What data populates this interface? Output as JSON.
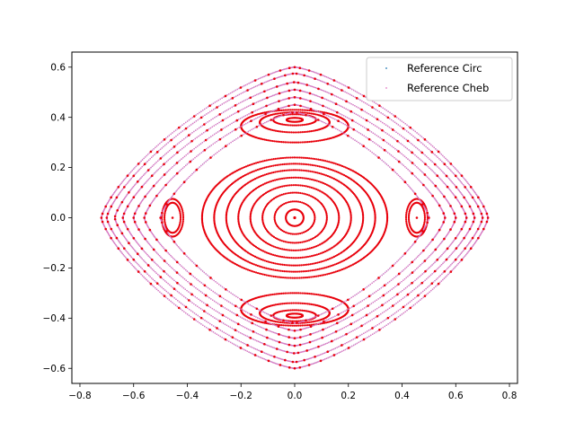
{
  "chart_data": {
    "type": "scatter",
    "title": "",
    "xlabel": "",
    "ylabel": "",
    "xlim": [
      -0.83,
      0.83
    ],
    "ylim": [
      -0.66,
      0.66
    ],
    "grid": false,
    "legend_position": "top-right",
    "x_ticks": [
      "−0.8",
      "−0.6",
      "−0.4",
      "−0.2",
      "0.0",
      "0.2",
      "0.4",
      "0.6",
      "0.8"
    ],
    "x_tick_values": [
      -0.8,
      -0.6,
      -0.4,
      -0.2,
      0.0,
      0.2,
      0.4,
      0.6,
      0.8
    ],
    "y_ticks": [
      "−0.6",
      "−0.4",
      "−0.2",
      "0.0",
      "0.2",
      "0.4",
      "0.6"
    ],
    "y_tick_values": [
      -0.6,
      -0.4,
      -0.2,
      0.0,
      0.2,
      0.4,
      0.6
    ],
    "series": [
      {
        "name": "Reference Circ",
        "color": "#1f77b4"
      },
      {
        "name": "Reference Cheb",
        "color": "#e377c2"
      }
    ],
    "overlay_color": "#e8000b",
    "curves": [
      {
        "kind": "ellipse",
        "cx": 0.0,
        "cy": 0.0,
        "rx": 0.033,
        "ry": 0.033
      },
      {
        "kind": "ellipse",
        "cx": 0.0,
        "cy": 0.0,
        "rx": 0.075,
        "ry": 0.065
      },
      {
        "kind": "ellipse",
        "cx": 0.0,
        "cy": 0.0,
        "rx": 0.12,
        "ry": 0.1
      },
      {
        "kind": "ellipse",
        "cx": 0.0,
        "cy": 0.0,
        "rx": 0.165,
        "ry": 0.13
      },
      {
        "kind": "ellipse",
        "cx": 0.0,
        "cy": 0.0,
        "rx": 0.21,
        "ry": 0.16
      },
      {
        "kind": "ellipse",
        "cx": 0.0,
        "cy": 0.0,
        "rx": 0.255,
        "ry": 0.19
      },
      {
        "kind": "ellipse",
        "cx": 0.0,
        "cy": 0.0,
        "rx": 0.3,
        "ry": 0.215
      },
      {
        "kind": "ellipse",
        "cx": 0.0,
        "cy": 0.0,
        "rx": 0.345,
        "ry": 0.24
      },
      {
        "kind": "ellipse",
        "cx": 0.0,
        "cy": 0.39,
        "rx": 0.03,
        "ry": 0.008
      },
      {
        "kind": "ellipse",
        "cx": 0.0,
        "cy": 0.39,
        "rx": 0.08,
        "ry": 0.022
      },
      {
        "kind": "ellipse",
        "cx": 0.0,
        "cy": 0.38,
        "rx": 0.13,
        "ry": 0.04
      },
      {
        "kind": "ellipse",
        "cx": 0.0,
        "cy": 0.365,
        "rx": 0.2,
        "ry": 0.065
      },
      {
        "kind": "ellipse",
        "cx": 0.0,
        "cy": -0.39,
        "rx": 0.03,
        "ry": 0.008
      },
      {
        "kind": "ellipse",
        "cx": 0.0,
        "cy": -0.39,
        "rx": 0.08,
        "ry": 0.022
      },
      {
        "kind": "ellipse",
        "cx": 0.0,
        "cy": -0.38,
        "rx": 0.13,
        "ry": 0.04
      },
      {
        "kind": "ellipse",
        "cx": 0.0,
        "cy": -0.365,
        "rx": 0.2,
        "ry": 0.065
      },
      {
        "kind": "ellipse",
        "cx": 0.455,
        "cy": 0.0,
        "rx": 0.03,
        "ry": 0.06
      },
      {
        "kind": "ellipse",
        "cx": 0.455,
        "cy": 0.0,
        "rx": 0.04,
        "ry": 0.075
      },
      {
        "kind": "ellipse",
        "cx": -0.455,
        "cy": 0.0,
        "rx": 0.03,
        "ry": 0.06
      },
      {
        "kind": "ellipse",
        "cx": -0.455,
        "cy": 0.0,
        "rx": 0.04,
        "ry": 0.075
      },
      {
        "kind": "lens",
        "rx": 0.5,
        "ry": 0.42,
        "tip": 0.56
      },
      {
        "kind": "lens",
        "rx": 0.56,
        "ry": 0.45,
        "tip": 0.6
      },
      {
        "kind": "lens",
        "rx": 0.6,
        "ry": 0.48,
        "tip": 0.63
      },
      {
        "kind": "lens",
        "rx": 0.64,
        "ry": 0.51,
        "tip": 0.66
      },
      {
        "kind": "lens",
        "rx": 0.67,
        "ry": 0.54,
        "tip": 0.69
      },
      {
        "kind": "lens",
        "rx": 0.7,
        "ry": 0.575,
        "tip": 0.72
      },
      {
        "kind": "lens",
        "rx": 0.72,
        "ry": 0.6,
        "tip": 0.74
      }
    ]
  }
}
